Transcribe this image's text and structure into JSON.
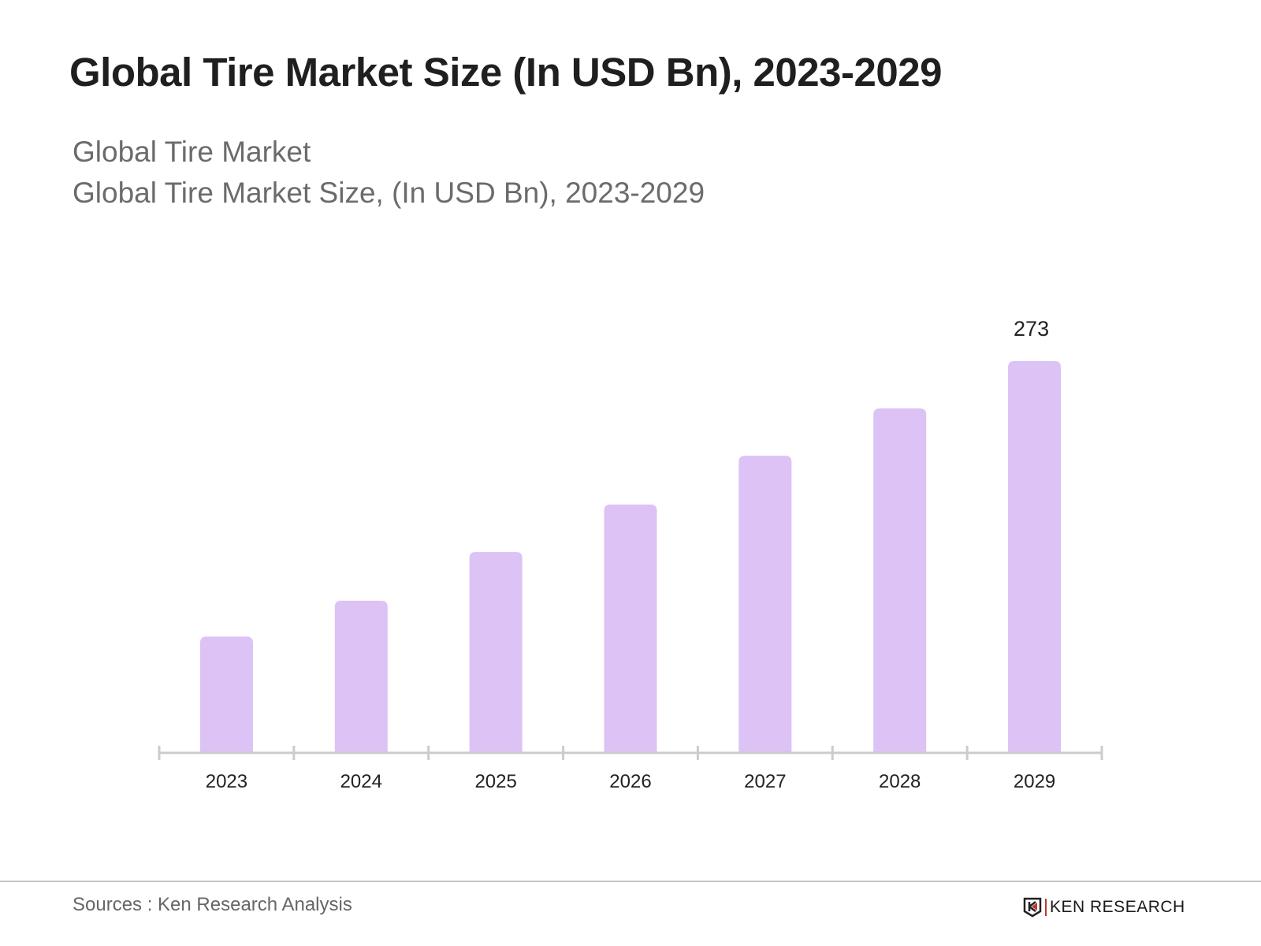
{
  "title": "Global Tire Market Size (In USD Bn), 2023-2029",
  "subtitle_1": "Global Tire Market",
  "subtitle_2": "Global Tire Market Size, (In USD Bn), 2023-2029",
  "footer": {
    "source": "Sources : Ken Research Analysis",
    "logo_text": "KEN RESEARCH"
  },
  "chart_data": {
    "type": "bar",
    "title": "Global Tire Market Size (In USD Bn), 2023-2029",
    "categories": [
      "2023",
      "2024",
      "2025",
      "2026",
      "2027",
      "2028",
      "2029"
    ],
    "values": [
      81,
      106,
      140,
      173,
      207,
      240,
      273
    ],
    "data_labels": [
      null,
      null,
      null,
      null,
      null,
      null,
      "273"
    ],
    "ylim": [
      0,
      273
    ],
    "grid": false,
    "bar_color": "#dcc2f5",
    "axis_color": "#cccccc"
  }
}
